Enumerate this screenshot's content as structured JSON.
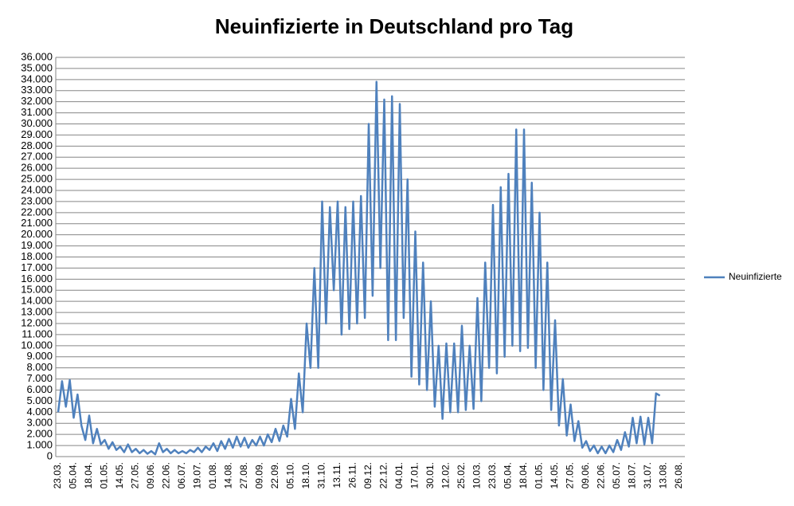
{
  "chart_data": {
    "type": "line",
    "title": "Neuinfizierte in Deutschland pro Tag",
    "categories": [
      "23.03.",
      null,
      null,
      null,
      "05.04.",
      null,
      null,
      null,
      "18.04.",
      null,
      null,
      null,
      "01.05.",
      null,
      null,
      null,
      "14.05.",
      null,
      null,
      null,
      "27.05.",
      null,
      null,
      null,
      "09.06.",
      null,
      null,
      null,
      "22.06.",
      null,
      null,
      null,
      "06.07.",
      null,
      null,
      null,
      "19.07.",
      null,
      null,
      null,
      "01.08.",
      null,
      null,
      null,
      "14.08.",
      null,
      null,
      null,
      "27.08.",
      null,
      null,
      null,
      "09.09.",
      null,
      null,
      null,
      "22.09.",
      null,
      null,
      null,
      "05.10.",
      null,
      null,
      null,
      "18.10.",
      null,
      null,
      null,
      "31.10.",
      null,
      null,
      null,
      "13.11.",
      null,
      null,
      null,
      "26.11.",
      null,
      null,
      null,
      "09.12.",
      null,
      null,
      null,
      "22.12.",
      null,
      null,
      null,
      "04.01.",
      null,
      null,
      null,
      "17.01.",
      null,
      null,
      null,
      "30.01.",
      null,
      null,
      null,
      "12.02.",
      null,
      null,
      null,
      "25.02.",
      null,
      null,
      null,
      "10.03.",
      null,
      null,
      null,
      "23.03.",
      null,
      null,
      null,
      "05.04.",
      null,
      null,
      null,
      "18.04.",
      null,
      null,
      null,
      "01.05.",
      null,
      null,
      null,
      "14.05.",
      null,
      null,
      null,
      "27.05.",
      null,
      null,
      null,
      "09.06.",
      null,
      null,
      null,
      "22.06.",
      null,
      null,
      null,
      "05.07.",
      null,
      null,
      null,
      "18.07.",
      null,
      null,
      null,
      "31.07.",
      null,
      null,
      null,
      "13.08.",
      null,
      null,
      null,
      "26.08."
    ],
    "series": [
      {
        "name": "Neuinfizierte",
        "color": "#4f81bd",
        "values": [
          4000,
          6800,
          4500,
          6900,
          3500,
          5600,
          2800,
          1500,
          3700,
          1200,
          2500,
          1100,
          1500,
          700,
          1300,
          600,
          900,
          400,
          1100,
          400,
          700,
          300,
          600,
          250,
          500,
          200,
          1200,
          400,
          700,
          300,
          600,
          300,
          500,
          300,
          600,
          400,
          800,
          400,
          900,
          600,
          1200,
          500,
          1400,
          700,
          1600,
          800,
          1800,
          900,
          1700,
          800,
          1500,
          1000,
          1800,
          1000,
          2000,
          1300,
          2500,
          1400,
          2800,
          1800,
          5200,
          2500,
          7500,
          4000,
          12000,
          8000,
          17000,
          8000,
          23000,
          12000,
          22500,
          15000,
          23000,
          11000,
          22500,
          11500,
          23000,
          12000,
          23500,
          12500,
          30000,
          14500,
          33800,
          17000,
          32200,
          10500,
          32500,
          10500,
          31800,
          12500,
          25000,
          7200,
          20300,
          6500,
          17500,
          6000,
          14000,
          4500,
          10000,
          3400,
          10200,
          4000,
          10200,
          4000,
          11800,
          4200,
          10000,
          4300,
          14300,
          5000,
          17500,
          8000,
          22700,
          7500,
          24300,
          9000,
          25500,
          10000,
          29500,
          9500,
          29500,
          9800,
          24700,
          8000,
          22000,
          6000,
          17500,
          4200,
          12300,
          2800,
          7000,
          1900,
          4700,
          1400,
          3200,
          800,
          1400,
          500,
          1000,
          300,
          900,
          300,
          1000,
          400,
          1500,
          600,
          2200,
          900,
          3500,
          1200,
          3600,
          1100,
          3500,
          1200,
          5700,
          5500,
          null,
          null,
          null,
          null,
          null
        ]
      }
    ],
    "ylim": [
      0,
      36000
    ],
    "yticks": [
      0,
      {
        "value": 1000,
        "label": "1.000"
      },
      {
        "value": 2000,
        "label": "2.000"
      },
      {
        "value": 3000,
        "label": "3.000"
      },
      {
        "value": 4000,
        "label": "4.000"
      },
      {
        "value": 5000,
        "label": "5.000"
      },
      {
        "value": 6000,
        "label": "6.000"
      },
      {
        "value": 7000,
        "label": "7.000"
      },
      {
        "value": 8000,
        "label": "8.000"
      },
      {
        "value": 9000,
        "label": "9.000"
      },
      {
        "value": 10000,
        "label": "10.000"
      },
      {
        "value": 11000,
        "label": "11.000"
      },
      {
        "value": 12000,
        "label": "12.000"
      },
      {
        "value": 13000,
        "label": "13.000"
      },
      {
        "value": 14000,
        "label": "14.000"
      },
      {
        "value": 15000,
        "label": "15.000"
      },
      {
        "value": 16000,
        "label": "16.000"
      },
      {
        "value": 17000,
        "label": "17.000"
      },
      {
        "value": 18000,
        "label": "18.000"
      },
      {
        "value": 19000,
        "label": "19.000"
      },
      {
        "value": 20000,
        "label": "20.000"
      },
      {
        "value": 21000,
        "label": "21.000"
      },
      {
        "value": 22000,
        "label": "22.000"
      },
      {
        "value": 23000,
        "label": "23.000"
      },
      {
        "value": 24000,
        "label": "24.000"
      },
      {
        "value": 25000,
        "label": "25.000"
      },
      {
        "value": 26000,
        "label": "26.000"
      },
      {
        "value": 27000,
        "label": "27.000"
      },
      {
        "value": 28000,
        "label": "28.000"
      },
      {
        "value": 29000,
        "label": "29.000"
      },
      {
        "value": 30000,
        "label": "30.000"
      },
      {
        "value": 31000,
        "label": "31.000"
      },
      {
        "value": 32000,
        "label": "32.000"
      },
      {
        "value": 33000,
        "label": "33.000"
      },
      {
        "value": 34000,
        "label": "34.000"
      },
      {
        "value": 35000,
        "label": "35.000"
      },
      {
        "value": 36000,
        "label": "36.000"
      }
    ],
    "grid": true,
    "legend": "right"
  }
}
